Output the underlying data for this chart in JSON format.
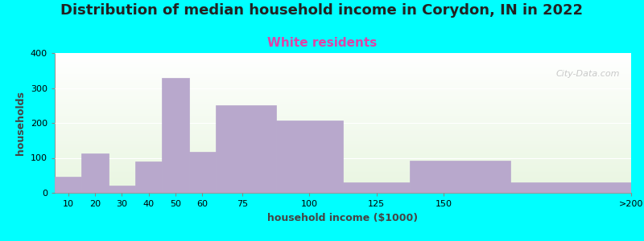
{
  "title": "Distribution of median household income in Corydon, IN in 2022",
  "subtitle": "White residents",
  "xlabel": "household income ($1000)",
  "ylabel": "households",
  "background_color": "#00FFFF",
  "plot_bg_colors": [
    "#e8f5e0",
    "#f8fff8",
    "#ffffff"
  ],
  "bar_color": "#b8a8cc",
  "bar_edge_color": "#9988aa",
  "categories": [
    "10",
    "20",
    "30",
    "40",
    "50",
    "60",
    "75",
    "100",
    "125",
    "150",
    ">200"
  ],
  "bin_edges": [
    5,
    15,
    25,
    35,
    45,
    55,
    65,
    87.5,
    112.5,
    137.5,
    175,
    220
  ],
  "tick_positions": [
    10,
    20,
    30,
    40,
    50,
    60,
    75,
    100,
    125,
    150,
    220
  ],
  "tick_labels": [
    "10",
    "20",
    "30",
    "40",
    "50",
    "60",
    "75",
    "100",
    "125",
    "150",
    ">200"
  ],
  "values": [
    45,
    113,
    20,
    90,
    328,
    118,
    250,
    208,
    30,
    93,
    30
  ],
  "ylim": [
    0,
    400
  ],
  "yticks": [
    0,
    100,
    200,
    300,
    400
  ],
  "title_fontsize": 13,
  "subtitle_fontsize": 11,
  "subtitle_color": "#dd44aa",
  "axis_label_fontsize": 9,
  "tick_fontsize": 8,
  "watermark_text": "City-Data.com",
  "watermark_color": "#c0c0c0"
}
